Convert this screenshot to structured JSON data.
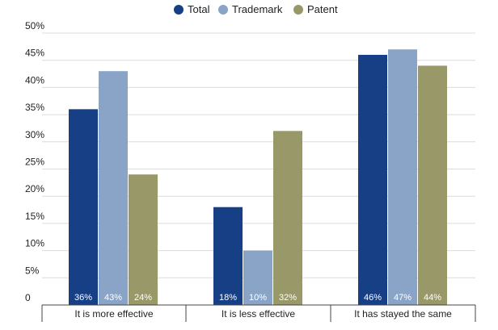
{
  "chart_data": {
    "type": "bar",
    "categories": [
      "It is more effective",
      "It is less effective",
      "It has stayed the same"
    ],
    "series": [
      {
        "name": "Total",
        "color": "#173f86",
        "values": [
          36,
          18,
          46
        ]
      },
      {
        "name": "Trademark",
        "color": "#8aa4c8",
        "values": [
          43,
          10,
          47
        ]
      },
      {
        "name": "Patent",
        "color": "#989868",
        "values": [
          24,
          32,
          44
        ]
      }
    ],
    "value_labels": [
      [
        "36%",
        "18%",
        "46%"
      ],
      [
        "43%",
        "10%",
        "47%"
      ],
      [
        "24%",
        "32%",
        "44%"
      ]
    ],
    "ylim": [
      0,
      50
    ],
    "yticks": [
      0,
      5,
      10,
      15,
      20,
      25,
      30,
      35,
      40,
      45,
      50
    ],
    "ytick_labels": [
      "0",
      "5%",
      "10%",
      "15%",
      "20%",
      "25%",
      "30%",
      "35%",
      "40%",
      "45%",
      "50%"
    ],
    "grid": true,
    "legend_position": "top-center"
  }
}
